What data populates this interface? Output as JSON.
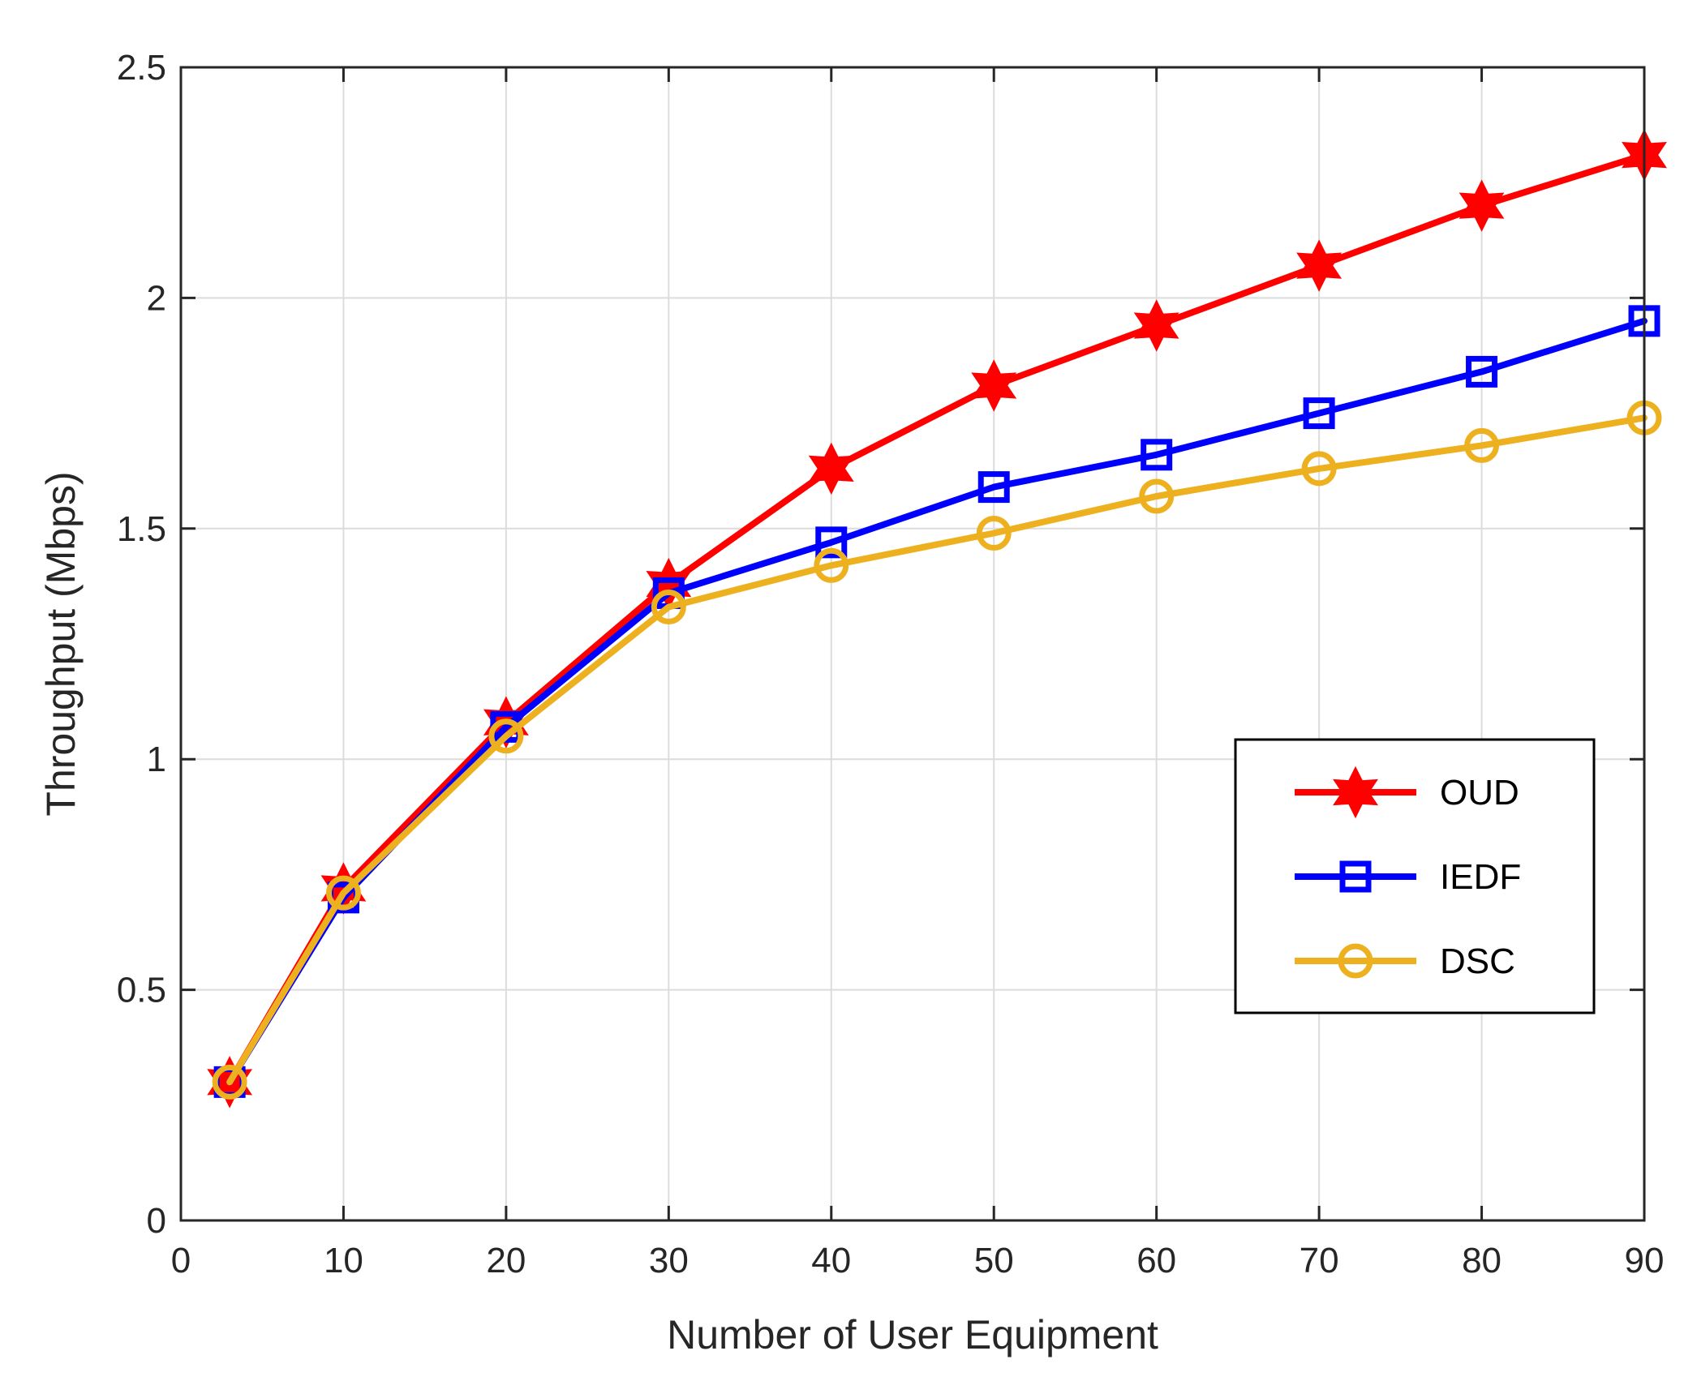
{
  "chart_data": {
    "type": "line",
    "title": "",
    "xlabel": "Number of User Equipment",
    "ylabel": "Throughput (Mbps)",
    "xlim": [
      0,
      90
    ],
    "ylim": [
      0,
      2.5
    ],
    "xticks": [
      0,
      10,
      20,
      30,
      40,
      50,
      60,
      70,
      80,
      90
    ],
    "yticks": [
      0,
      0.5,
      1,
      1.5,
      2,
      2.5
    ],
    "xtick_labels": [
      "0",
      "10",
      "20",
      "30",
      "40",
      "50",
      "60",
      "70",
      "80",
      "90"
    ],
    "ytick_labels": [
      "0",
      "0.5",
      "1",
      "1.5",
      "2",
      "2.5"
    ],
    "grid": true,
    "legend_position": "right",
    "x": [
      3,
      10,
      20,
      30,
      40,
      50,
      60,
      70,
      80,
      90
    ],
    "series": [
      {
        "name": "OUD",
        "color": "#ff0000",
        "marker": "hexagram",
        "values": [
          0.3,
          0.72,
          1.08,
          1.38,
          1.63,
          1.81,
          1.94,
          2.07,
          2.2,
          2.31
        ]
      },
      {
        "name": "IEDF",
        "color": "#0000ff",
        "marker": "square",
        "values": [
          0.3,
          0.7,
          1.07,
          1.36,
          1.47,
          1.59,
          1.66,
          1.75,
          1.84,
          1.95
        ]
      },
      {
        "name": "DSC",
        "color": "#edb120",
        "marker": "circle",
        "values": [
          0.3,
          0.71,
          1.05,
          1.33,
          1.42,
          1.49,
          1.57,
          1.63,
          1.68,
          1.74
        ]
      }
    ]
  }
}
